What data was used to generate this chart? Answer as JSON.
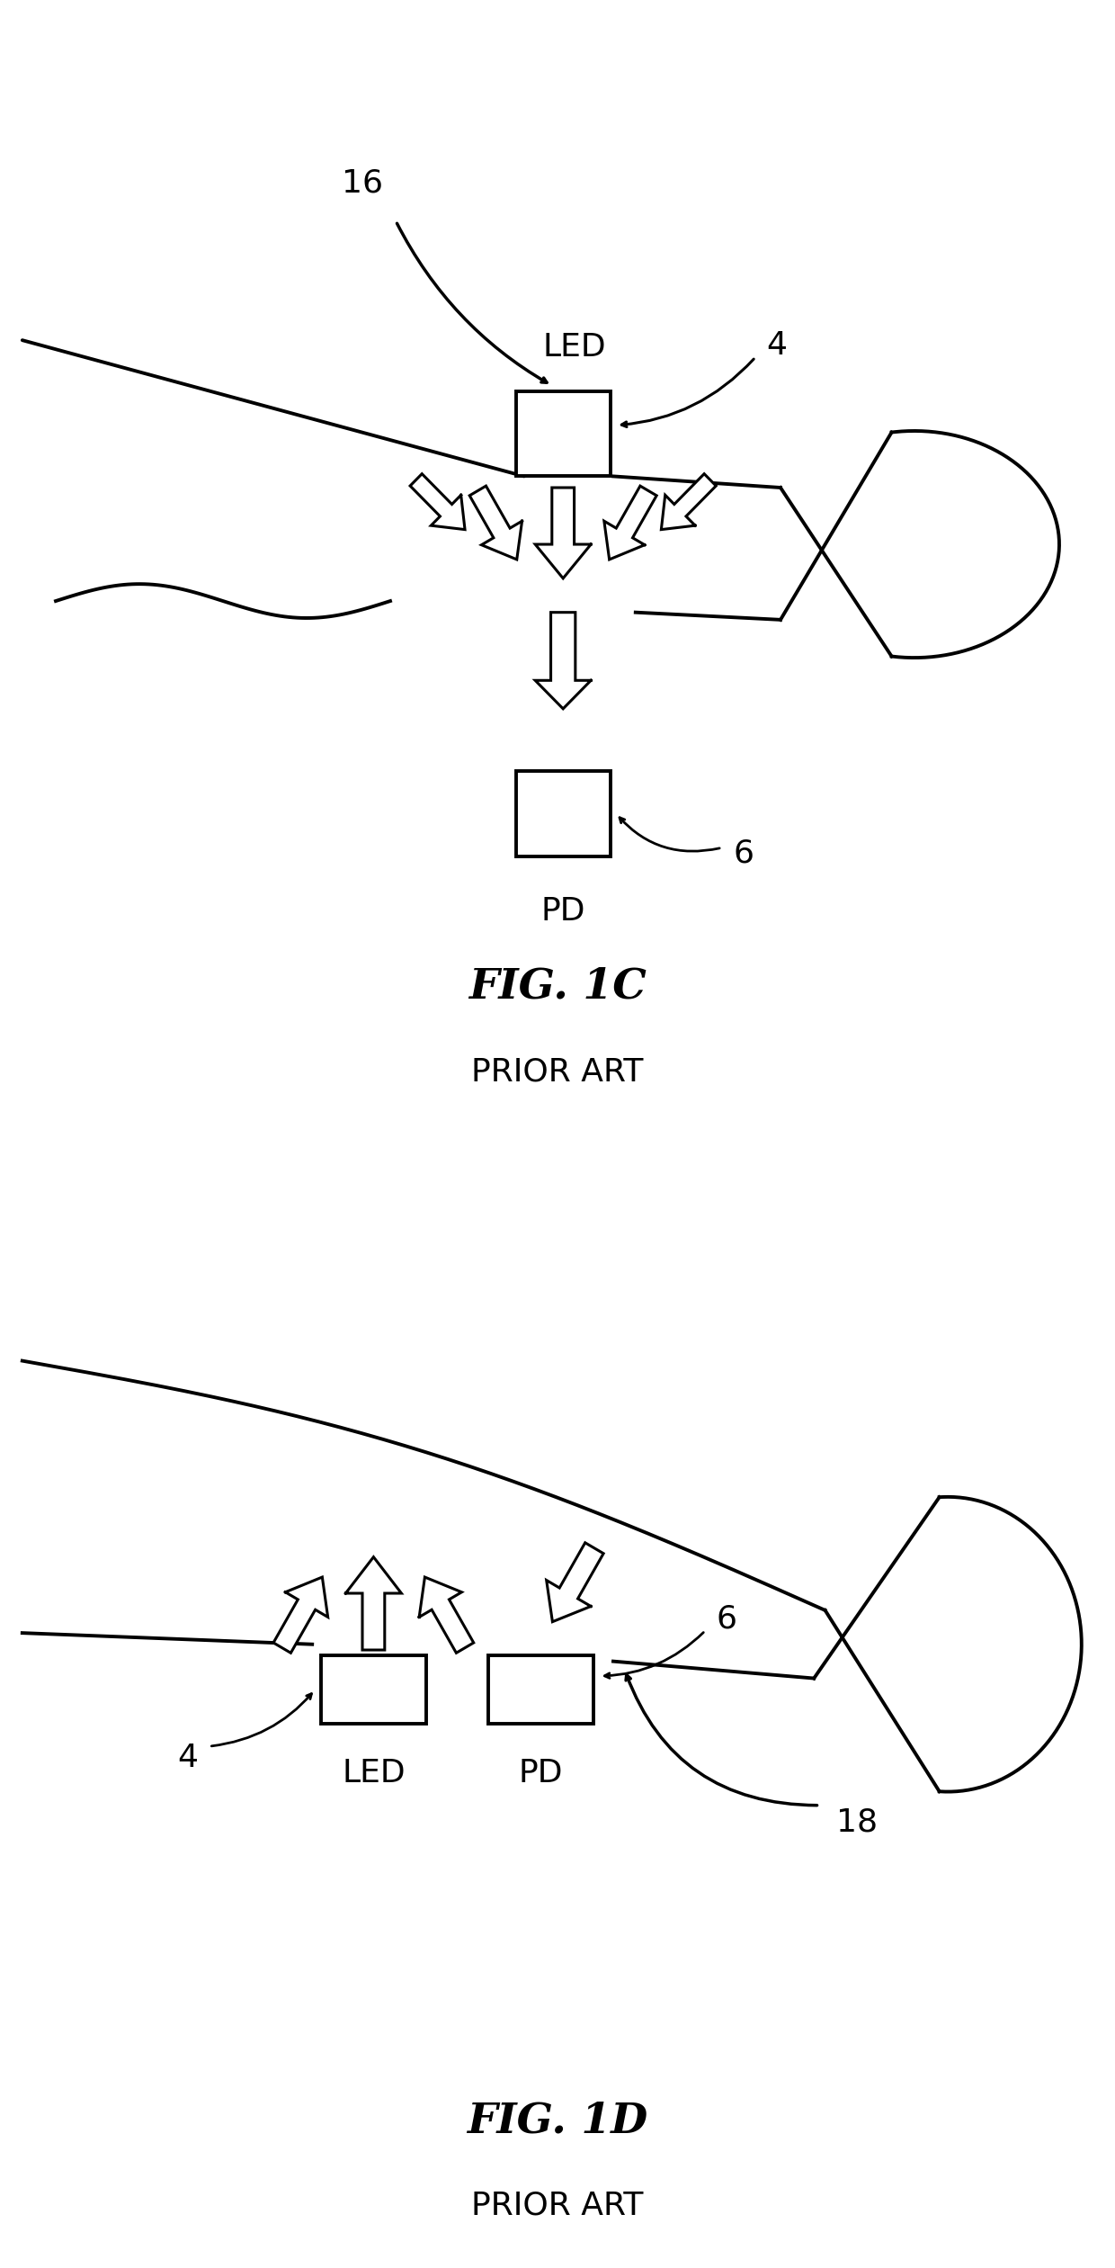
{
  "bg_color": "#ffffff",
  "line_color": "#000000",
  "fig1c": {
    "title": "FIG. 1C",
    "subtitle": "PRIOR ART",
    "label_16": "16",
    "label_4": "4",
    "label_6": "6",
    "label_LED": "LED",
    "label_PD": "PD"
  },
  "fig1d": {
    "title": "FIG. 1D",
    "subtitle": "PRIOR ART",
    "label_4": "4",
    "label_6": "6",
    "label_18": "18",
    "label_LED": "LED",
    "label_PD": "PD"
  }
}
